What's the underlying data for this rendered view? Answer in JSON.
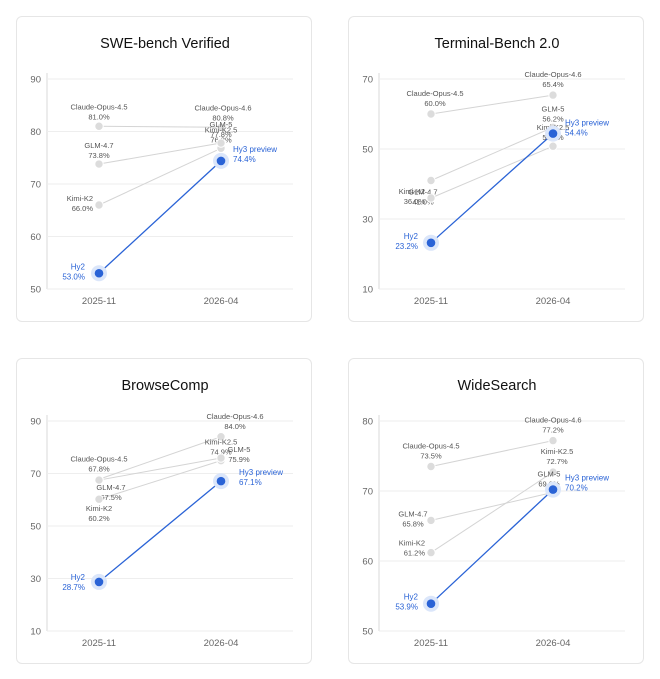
{
  "colors": {
    "highlight": "#2a63d6",
    "other": "#cfcfcf",
    "grid": "#eeeeee"
  },
  "chart_data": [
    {
      "type": "line",
      "title": "SWE-bench Verified",
      "categories": [
        "2025-11",
        "2026-04"
      ],
      "yticks": [
        50,
        60,
        70,
        80,
        90
      ],
      "ylim": [
        50,
        90
      ],
      "grid": true,
      "points": [
        {
          "name": "Claude-Opus-4.5",
          "x": "2025-11",
          "y": 81.0,
          "text": "81.0%"
        },
        {
          "name": "Claude-Opus-4.6",
          "x": "2026-04",
          "y": 80.8,
          "text": "80.8%"
        },
        {
          "name": "Kimi-K2.5",
          "x": "2026-04",
          "y": 76.8,
          "text": "76.8%"
        },
        {
          "name": "GLM-4.7",
          "x": "2025-11",
          "y": 73.8,
          "text": "73.8%"
        },
        {
          "name": "GLM-5",
          "x": "2026-04",
          "y": 77.8,
          "text": "77.8%"
        },
        {
          "name": "Kimi-K2",
          "x": "2025-11",
          "y": 66.0,
          "text": "66.0%"
        },
        {
          "name": "Hy2",
          "x": "2025-11",
          "y": 53.0,
          "text": "53.0%",
          "highlight": true
        },
        {
          "name": "Hy3 preview",
          "x": "2026-04",
          "y": 74.4,
          "text": "74.4%",
          "highlight": true
        }
      ]
    },
    {
      "type": "line",
      "title": "Terminal-Bench 2.0",
      "categories": [
        "2025-11",
        "2026-04"
      ],
      "yticks": [
        10,
        30,
        50,
        70
      ],
      "ylim": [
        10,
        70
      ],
      "grid": true,
      "points": [
        {
          "name": "Claude-Opus-4.5",
          "x": "2025-11",
          "y": 60.0,
          "text": "60.0%"
        },
        {
          "name": "Claude-Opus-4.6",
          "x": "2026-04",
          "y": 65.4,
          "text": "65.4%"
        },
        {
          "name": "GLM-5",
          "x": "2026-04",
          "y": 56.2,
          "text": "56.2%"
        },
        {
          "name": "Kimi-K2.5",
          "x": "2026-04",
          "y": 50.8,
          "text": "50.8%"
        },
        {
          "name": "GLM-4.7",
          "x": "2025-11",
          "y": 41.0,
          "text": "41.0%"
        },
        {
          "name": "Kimi-K2",
          "x": "2025-11",
          "y": 36.0,
          "text": "36.0%"
        },
        {
          "name": "Hy2",
          "x": "2025-11",
          "y": 23.2,
          "text": "23.2%",
          "highlight": true
        },
        {
          "name": "Hy3 preview",
          "x": "2026-04",
          "y": 54.4,
          "text": "54.4%",
          "highlight": true
        }
      ]
    },
    {
      "type": "line",
      "title": "BrowseComp",
      "categories": [
        "2025-11",
        "2026-04"
      ],
      "yticks": [
        10,
        30,
        50,
        70,
        90
      ],
      "ylim": [
        10,
        90
      ],
      "grid": true,
      "points": [
        {
          "name": "Claude-Opus-4.5",
          "x": "2025-11",
          "y": 67.8,
          "text": "67.8%"
        },
        {
          "name": "Claude-Opus-4.6",
          "x": "2026-04",
          "y": 84.0,
          "text": "84.0%"
        },
        {
          "name": "Kimi-K2.5",
          "x": "2026-04",
          "y": 74.9,
          "text": "74.9%"
        },
        {
          "name": "GLM-5",
          "x": "2026-04",
          "y": 75.9,
          "text": "75.9%"
        },
        {
          "name": "GLM-4.7",
          "x": "2025-11",
          "y": 67.5,
          "text": "67.5%"
        },
        {
          "name": "Kimi-K2",
          "x": "2025-11",
          "y": 60.2,
          "text": "60.2%"
        },
        {
          "name": "Hy2",
          "x": "2025-11",
          "y": 28.7,
          "text": "28.7%",
          "highlight": true
        },
        {
          "name": "Hy3 preview",
          "x": "2026-04",
          "y": 67.1,
          "text": "67.1%",
          "highlight": true
        }
      ]
    },
    {
      "type": "line",
      "title": "WideSearch",
      "categories": [
        "2025-11",
        "2026-04"
      ],
      "yticks": [
        50,
        60,
        70,
        80
      ],
      "ylim": [
        50,
        80
      ],
      "grid": true,
      "points": [
        {
          "name": "Claude-Opus-4.5",
          "x": "2025-11",
          "y": 73.5,
          "text": "73.5%"
        },
        {
          "name": "Claude-Opus-4.6",
          "x": "2026-04",
          "y": 77.2,
          "text": "77.2%"
        },
        {
          "name": "Kimi-K2.5",
          "x": "2026-04",
          "y": 72.7,
          "text": "72.7%"
        },
        {
          "name": "GLM-5",
          "x": "2026-04",
          "y": 69.8,
          "text": "69.8%"
        },
        {
          "name": "GLM-4.7",
          "x": "2025-11",
          "y": 65.8,
          "text": "65.8%"
        },
        {
          "name": "Kimi-K2",
          "x": "2025-11",
          "y": 61.2,
          "text": "61.2%"
        },
        {
          "name": "Hy2",
          "x": "2025-11",
          "y": 53.9,
          "text": "53.9%",
          "highlight": true
        },
        {
          "name": "Hy3 preview",
          "x": "2026-04",
          "y": 70.2,
          "text": "70.2%",
          "highlight": true
        }
      ]
    }
  ]
}
